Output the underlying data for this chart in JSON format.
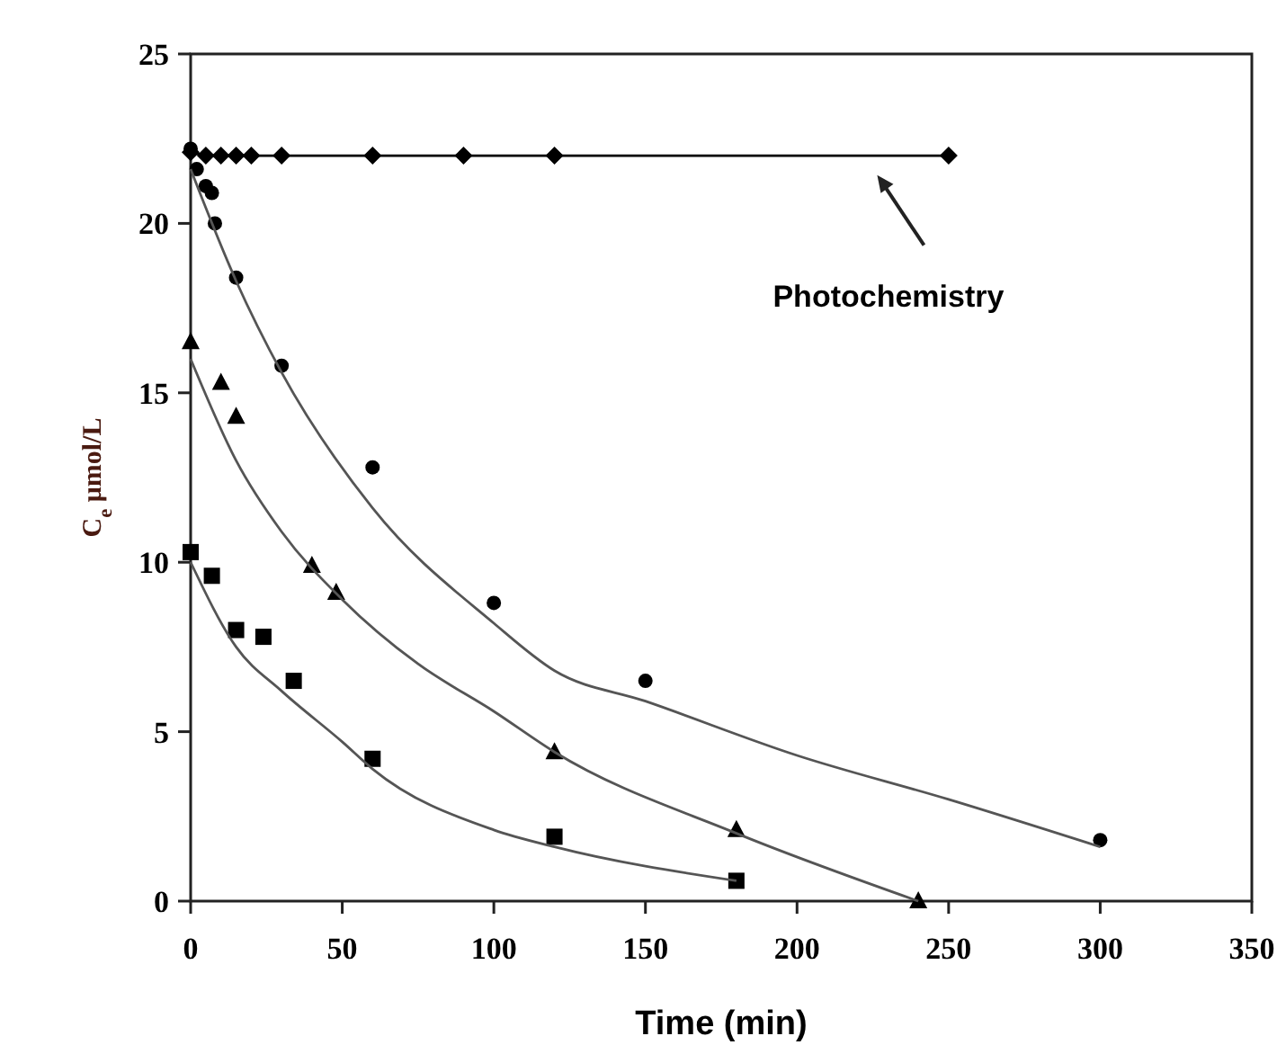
{
  "chart_data": {
    "type": "scatter",
    "xlabel": "Time (min)",
    "ylabel": "C$_{e}$ μmol/L",
    "xlim": [
      0,
      350
    ],
    "ylim": [
      0,
      25
    ],
    "xticks": [
      0,
      50,
      100,
      150,
      200,
      250,
      300,
      350
    ],
    "yticks": [
      0,
      5,
      10,
      15,
      20,
      25
    ],
    "grid": false,
    "series": [
      {
        "type": "line",
        "marker": "diamond",
        "color": "#000000",
        "x": [
          0,
          5,
          10,
          15,
          20,
          30,
          60,
          90,
          120,
          250
        ],
        "values": [
          22.1,
          22,
          22,
          22,
          22,
          22,
          22,
          22,
          22,
          22
        ]
      },
      {
        "marker": "circle",
        "color": "#000000",
        "x": [
          0,
          2,
          5,
          7,
          8,
          15,
          30,
          60,
          100,
          150,
          300
        ],
        "values": [
          22.2,
          21.6,
          21.1,
          20.9,
          20,
          18.4,
          15.8,
          12.8,
          8.8,
          6.5,
          1.8
        ]
      },
      {
        "marker": "triangle",
        "color": "#000000",
        "x": [
          0,
          10,
          15,
          40,
          48,
          120,
          180,
          240
        ],
        "values": [
          16.5,
          15.3,
          14.3,
          9.9,
          9.1,
          4.4,
          2.1,
          0
        ]
      },
      {
        "marker": "square",
        "color": "#000000",
        "x": [
          0,
          7,
          15,
          24,
          34,
          60,
          120,
          180
        ],
        "values": [
          10.3,
          9.6,
          8,
          7.8,
          6.5,
          4.2,
          1.9,
          0.6
        ]
      },
      {
        "type": "line",
        "marker": "none",
        "color": "#555555",
        "x": [
          0,
          15,
          30,
          60,
          100,
          120,
          150,
          200,
          250,
          300
        ],
        "values": [
          21.6,
          18.3,
          15.6,
          11.6,
          8.2,
          6.8,
          5.9,
          4.3,
          3,
          1.6
        ]
      },
      {
        "type": "line",
        "marker": "none",
        "color": "#555555",
        "x": [
          0,
          15,
          30,
          50,
          75,
          100,
          120,
          180,
          240
        ],
        "values": [
          16,
          13,
          10.9,
          8.9,
          7,
          5.6,
          4.4,
          2,
          0
        ]
      },
      {
        "type": "line",
        "marker": "none",
        "color": "#555555",
        "x": [
          0,
          15,
          30,
          50,
          60,
          100,
          120,
          180
        ],
        "values": [
          10,
          7.5,
          6.2,
          4.7,
          3.9,
          2.1,
          1.6,
          0.6
        ]
      }
    ],
    "annotations": [
      "Photochemistry"
    ]
  }
}
